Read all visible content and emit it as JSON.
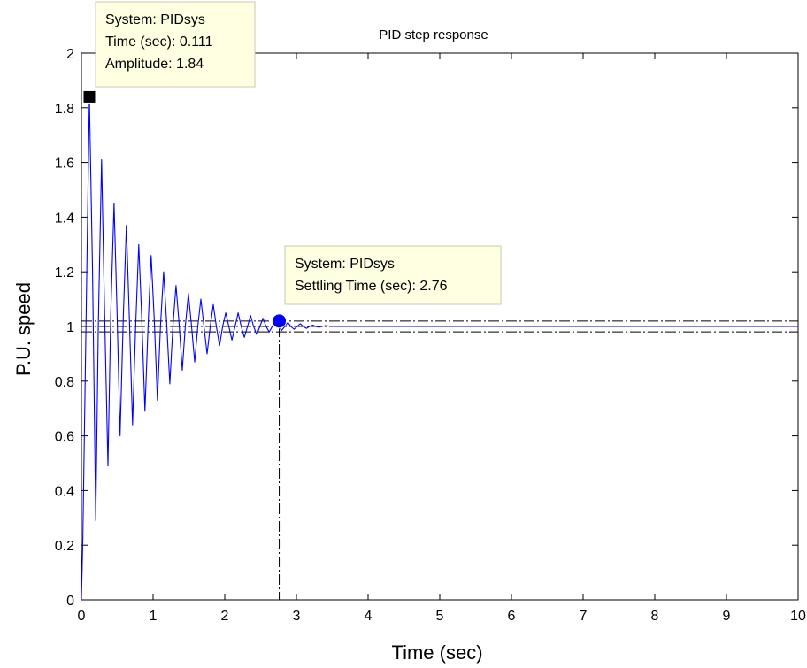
{
  "chart_data": {
    "type": "line",
    "title": "PID step response",
    "xlabel": "Time (sec)",
    "ylabel": "P.U. speed",
    "xlim": [
      0,
      10
    ],
    "ylim": [
      0,
      2
    ],
    "x_ticks": [
      "0",
      "1",
      "2",
      "3",
      "4",
      "5",
      "6",
      "7",
      "8",
      "9",
      "10"
    ],
    "y_ticks": [
      "0",
      "0.2",
      "0.4",
      "0.6",
      "0.8",
      "1",
      "1.2",
      "1.4",
      "1.6",
      "1.8",
      "2"
    ],
    "grid": false,
    "series": [
      {
        "color": "#0000ff",
        "x": [
          0,
          0.02,
          0.111,
          0.155,
          0.2,
          0.236,
          0.282,
          0.323,
          0.37,
          0.41,
          0.455,
          0.497,
          0.54,
          0.584,
          0.627,
          0.67,
          0.713,
          0.757,
          0.8,
          0.843,
          0.887,
          0.93,
          0.973,
          1.017,
          1.06,
          1.103,
          1.147,
          1.19,
          1.233,
          1.277,
          1.32,
          1.363,
          1.407,
          1.45,
          1.493,
          1.537,
          1.58,
          1.623,
          1.667,
          1.71,
          1.753,
          1.797,
          1.84,
          1.883,
          1.927,
          1.97,
          2.013,
          2.057,
          2.1,
          2.143,
          2.187,
          2.23,
          2.273,
          2.317,
          2.36,
          2.403,
          2.447,
          2.49,
          2.533,
          2.577,
          2.62,
          2.663,
          2.707,
          2.75,
          2.793,
          2.837,
          2.88,
          2.923,
          2.967,
          3.01,
          3.053,
          3.097,
          3.14,
          3.183,
          3.227,
          3.27,
          3.313,
          3.357,
          3.4,
          3.5,
          4,
          5,
          6,
          7,
          8,
          9,
          10
        ],
        "y": [
          0,
          0.22,
          1.84,
          1.2,
          0.29,
          1.0,
          1.61,
          1.05,
          0.49,
          1.05,
          1.45,
          1.05,
          0.6,
          1.03,
          1.37,
          1.02,
          0.64,
          1.0,
          1.3,
          1.02,
          0.69,
          1.0,
          1.26,
          1.02,
          0.73,
          1.0,
          1.2,
          1.01,
          0.79,
          1.0,
          1.15,
          1.01,
          0.84,
          1.0,
          1.12,
          1.0,
          0.87,
          1.0,
          1.1,
          1.0,
          0.9,
          1.0,
          1.08,
          1.0,
          0.93,
          1.0,
          1.05,
          1.0,
          0.95,
          1.0,
          1.05,
          1.0,
          0.96,
          1.0,
          1.04,
          1.0,
          0.97,
          1.0,
          1.03,
          1.0,
          0.98,
          1.0,
          1.02,
          1.0,
          0.985,
          1.0,
          1.015,
          1.0,
          0.99,
          1.0,
          1.01,
          1.0,
          0.993,
          1.0,
          1.005,
          1.0,
          0.997,
          1.0,
          1.003,
          1.0,
          1.0,
          1.0,
          1.0,
          1.0,
          1.0,
          1.0,
          1.0
        ]
      }
    ],
    "reference_lines": [
      {
        "y": 1.0,
        "style": "dashdot",
        "color": "#000000"
      },
      {
        "y": 1.02,
        "style": "dashdot",
        "color": "#000000"
      },
      {
        "y": 0.98,
        "style": "dashdot",
        "color": "#000000"
      }
    ],
    "settling_marker_line": {
      "x": 2.76,
      "style": "dashdot",
      "color": "#000000"
    },
    "annotations": [
      {
        "marker": "square",
        "marker_color": "#000000",
        "x": 0.111,
        "y": 1.84,
        "lines": [
          "System: PIDsys",
          "Time (sec): 0.111",
          "Amplitude: 1.84"
        ]
      },
      {
        "marker": "circle",
        "marker_color": "#0000ff",
        "x": 2.76,
        "y": 1.02,
        "lines": [
          "System: PIDsys",
          "Settling Time (sec): 2.76"
        ]
      }
    ],
    "datatip_background": "#ffffe1"
  }
}
